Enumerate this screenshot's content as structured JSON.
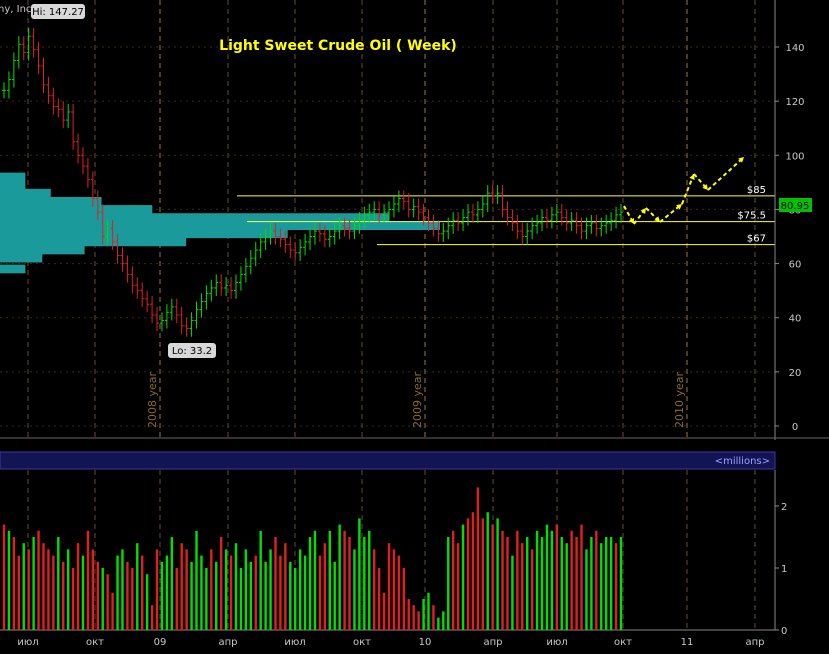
{
  "chart_data": {
    "type": "bar",
    "title": "Light Sweet Crude Oil  ( Week)",
    "source_fragment": "ny, Inc",
    "price_axis": {
      "ylim": [
        -3,
        152
      ],
      "ticks": [
        "0",
        "20",
        "40",
        "60",
        "80",
        "100",
        "120",
        "140"
      ]
    },
    "volume_axis": {
      "label": "<millions>",
      "ylim": [
        0,
        2.6
      ],
      "ticks": [
        "0",
        "1",
        "2"
      ]
    },
    "x_ticks": [
      "июл",
      "окт",
      "09",
      "апр",
      "июл",
      "окт",
      "10",
      "апр",
      "июл",
      "окт",
      "11",
      "апр"
    ],
    "year_labels": [
      "2008 year",
      "2009 year",
      "2010 year"
    ],
    "annotations": {
      "high": "Hi: 147.27",
      "low": "Lo: 33.2",
      "last_price": "80.95"
    },
    "levels": [
      {
        "label": "$85",
        "value": 85
      },
      {
        "label": "$75.5",
        "value": 75.5
      },
      {
        "label": "$67",
        "value": 67
      }
    ],
    "ohlc_close": [
      124,
      128,
      135,
      141,
      138,
      144,
      139,
      133,
      126,
      122,
      118,
      117,
      113,
      116,
      105,
      100,
      96,
      91,
      84,
      79,
      70,
      73,
      68,
      63,
      60,
      56,
      52,
      50,
      47,
      45,
      41,
      38,
      39,
      42,
      44,
      41,
      37,
      36,
      39,
      43,
      46,
      49,
      51,
      53,
      51,
      52,
      50,
      53,
      56,
      59,
      62,
      65,
      68,
      70,
      72,
      70,
      69,
      67,
      65,
      64,
      66,
      68,
      70,
      72,
      71,
      69,
      70,
      72,
      74,
      73,
      72,
      74,
      76,
      78,
      79,
      80,
      78,
      79,
      80,
      82,
      84,
      83,
      80,
      81,
      79,
      77,
      75,
      73,
      71,
      72,
      74,
      76,
      75,
      77,
      79,
      78,
      80,
      82,
      86,
      85,
      86,
      80,
      77,
      75,
      72,
      70,
      72,
      74,
      75,
      77,
      76,
      78,
      79,
      77,
      75,
      76,
      74,
      72,
      74,
      75,
      73,
      74,
      75,
      76,
      78,
      79
    ],
    "ohlc_color": [
      "g",
      "g",
      "g",
      "g",
      "r",
      "g",
      "r",
      "r",
      "r",
      "r",
      "r",
      "r",
      "r",
      "g",
      "r",
      "r",
      "r",
      "r",
      "r",
      "r",
      "r",
      "g",
      "r",
      "r",
      "r",
      "r",
      "r",
      "r",
      "r",
      "r",
      "r",
      "r",
      "g",
      "g",
      "g",
      "r",
      "r",
      "r",
      "g",
      "g",
      "g",
      "g",
      "g",
      "g",
      "r",
      "g",
      "r",
      "g",
      "g",
      "g",
      "g",
      "g",
      "g",
      "g",
      "g",
      "r",
      "r",
      "r",
      "r",
      "r",
      "g",
      "g",
      "g",
      "g",
      "r",
      "r",
      "g",
      "g",
      "g",
      "r",
      "r",
      "g",
      "g",
      "g",
      "g",
      "g",
      "r",
      "g",
      "g",
      "g",
      "g",
      "r",
      "r",
      "g",
      "r",
      "r",
      "r",
      "r",
      "r",
      "g",
      "g",
      "g",
      "r",
      "g",
      "g",
      "r",
      "g",
      "g",
      "g",
      "r",
      "g",
      "r",
      "r",
      "r",
      "r",
      "r",
      "g",
      "g",
      "g",
      "g",
      "r",
      "g",
      "g",
      "r",
      "r",
      "g",
      "r",
      "r",
      "g",
      "g",
      "r",
      "g",
      "g",
      "g",
      "g",
      "g"
    ],
    "volume_profile": [
      {
        "price": 58,
        "volume": 0.3
      },
      {
        "price": 62,
        "volume": 0.5
      },
      {
        "price": 65,
        "volume": 1.0
      },
      {
        "price": 68,
        "volume": 2.2
      },
      {
        "price": 71,
        "volume": 3.4
      },
      {
        "price": 74,
        "volume": 5.2
      },
      {
        "price": 77,
        "volume": 4.6
      },
      {
        "price": 80,
        "volume": 1.8
      },
      {
        "price": 83,
        "volume": 1.2
      },
      {
        "price": 86,
        "volume": 0.6
      },
      {
        "price": 89,
        "volume": 0.3
      },
      {
        "price": 92,
        "volume": 0.3
      }
    ],
    "volume_bars": [
      1.7,
      1.6,
      1.5,
      1.2,
      1.4,
      1.3,
      1.5,
      1.6,
      1.4,
      1.3,
      1.2,
      1.5,
      1.1,
      1.3,
      1.0,
      1.4,
      1.2,
      1.6,
      1.3,
      1.1,
      1.0,
      0.9,
      0.6,
      1.2,
      1.3,
      1.1,
      1.0,
      1.4,
      1.2,
      0.9,
      0.4,
      1.3,
      1.1,
      1.2,
      1.5,
      1.0,
      1.4,
      1.3,
      1.1,
      1.6,
      1.2,
      1.0,
      1.3,
      1.1,
      1.5,
      1.3,
      1.2,
      1.4,
      1.0,
      1.3,
      1.1,
      1.2,
      1.6,
      1.1,
      1.3,
      1.5,
      1.2,
      1.4,
      1.1,
      1.0,
      1.3,
      1.2,
      1.5,
      1.6,
      1.2,
      1.4,
      1.6,
      1.1,
      1.7,
      1.6,
      1.5,
      1.3,
      1.8,
      1.5,
      1.6,
      1.3,
      1.0,
      0.6,
      1.4,
      1.3,
      1.2,
      1.0,
      0.5,
      0.4,
      0.3,
      0.5,
      0.6,
      0.4,
      0.2,
      0.3,
      1.5,
      1.6,
      1.4,
      1.7,
      1.8,
      1.9,
      2.3,
      1.8,
      1.9,
      1.7,
      1.8,
      1.6,
      1.5,
      1.2,
      1.6,
      1.4,
      1.5,
      1.3,
      1.6,
      1.5,
      1.7,
      1.6,
      1.7,
      1.5,
      1.4,
      1.6,
      1.5,
      1.7,
      1.3,
      1.5,
      1.6,
      1.4,
      1.5,
      1.5,
      1.4,
      1.5
    ],
    "volume_color": [
      "r",
      "g",
      "r",
      "r",
      "g",
      "r",
      "g",
      "r",
      "r",
      "r",
      "r",
      "g",
      "r",
      "g",
      "r",
      "r",
      "g",
      "r",
      "r",
      "r",
      "g",
      "r",
      "r",
      "g",
      "g",
      "r",
      "r",
      "g",
      "r",
      "g",
      "r",
      "r",
      "g",
      "g",
      "g",
      "r",
      "r",
      "r",
      "g",
      "g",
      "g",
      "g",
      "r",
      "g",
      "r",
      "g",
      "r",
      "g",
      "g",
      "g",
      "g",
      "r",
      "g",
      "g",
      "g",
      "r",
      "r",
      "r",
      "g",
      "g",
      "g",
      "g",
      "g",
      "g",
      "r",
      "r",
      "g",
      "g",
      "g",
      "r",
      "r",
      "g",
      "g",
      "g",
      "g",
      "r",
      "r",
      "r",
      "r",
      "r",
      "r",
      "r",
      "r",
      "r",
      "r",
      "g",
      "g",
      "r",
      "g",
      "g",
      "g",
      "r",
      "r",
      "g",
      "r",
      "r",
      "r",
      "r",
      "g",
      "r",
      "g",
      "r",
      "r",
      "g",
      "r",
      "r",
      "g",
      "r",
      "g",
      "g",
      "g",
      "g",
      "r",
      "g",
      "g",
      "r",
      "r",
      "r",
      "g",
      "g",
      "r",
      "g",
      "g",
      "g",
      "r",
      "g"
    ]
  }
}
